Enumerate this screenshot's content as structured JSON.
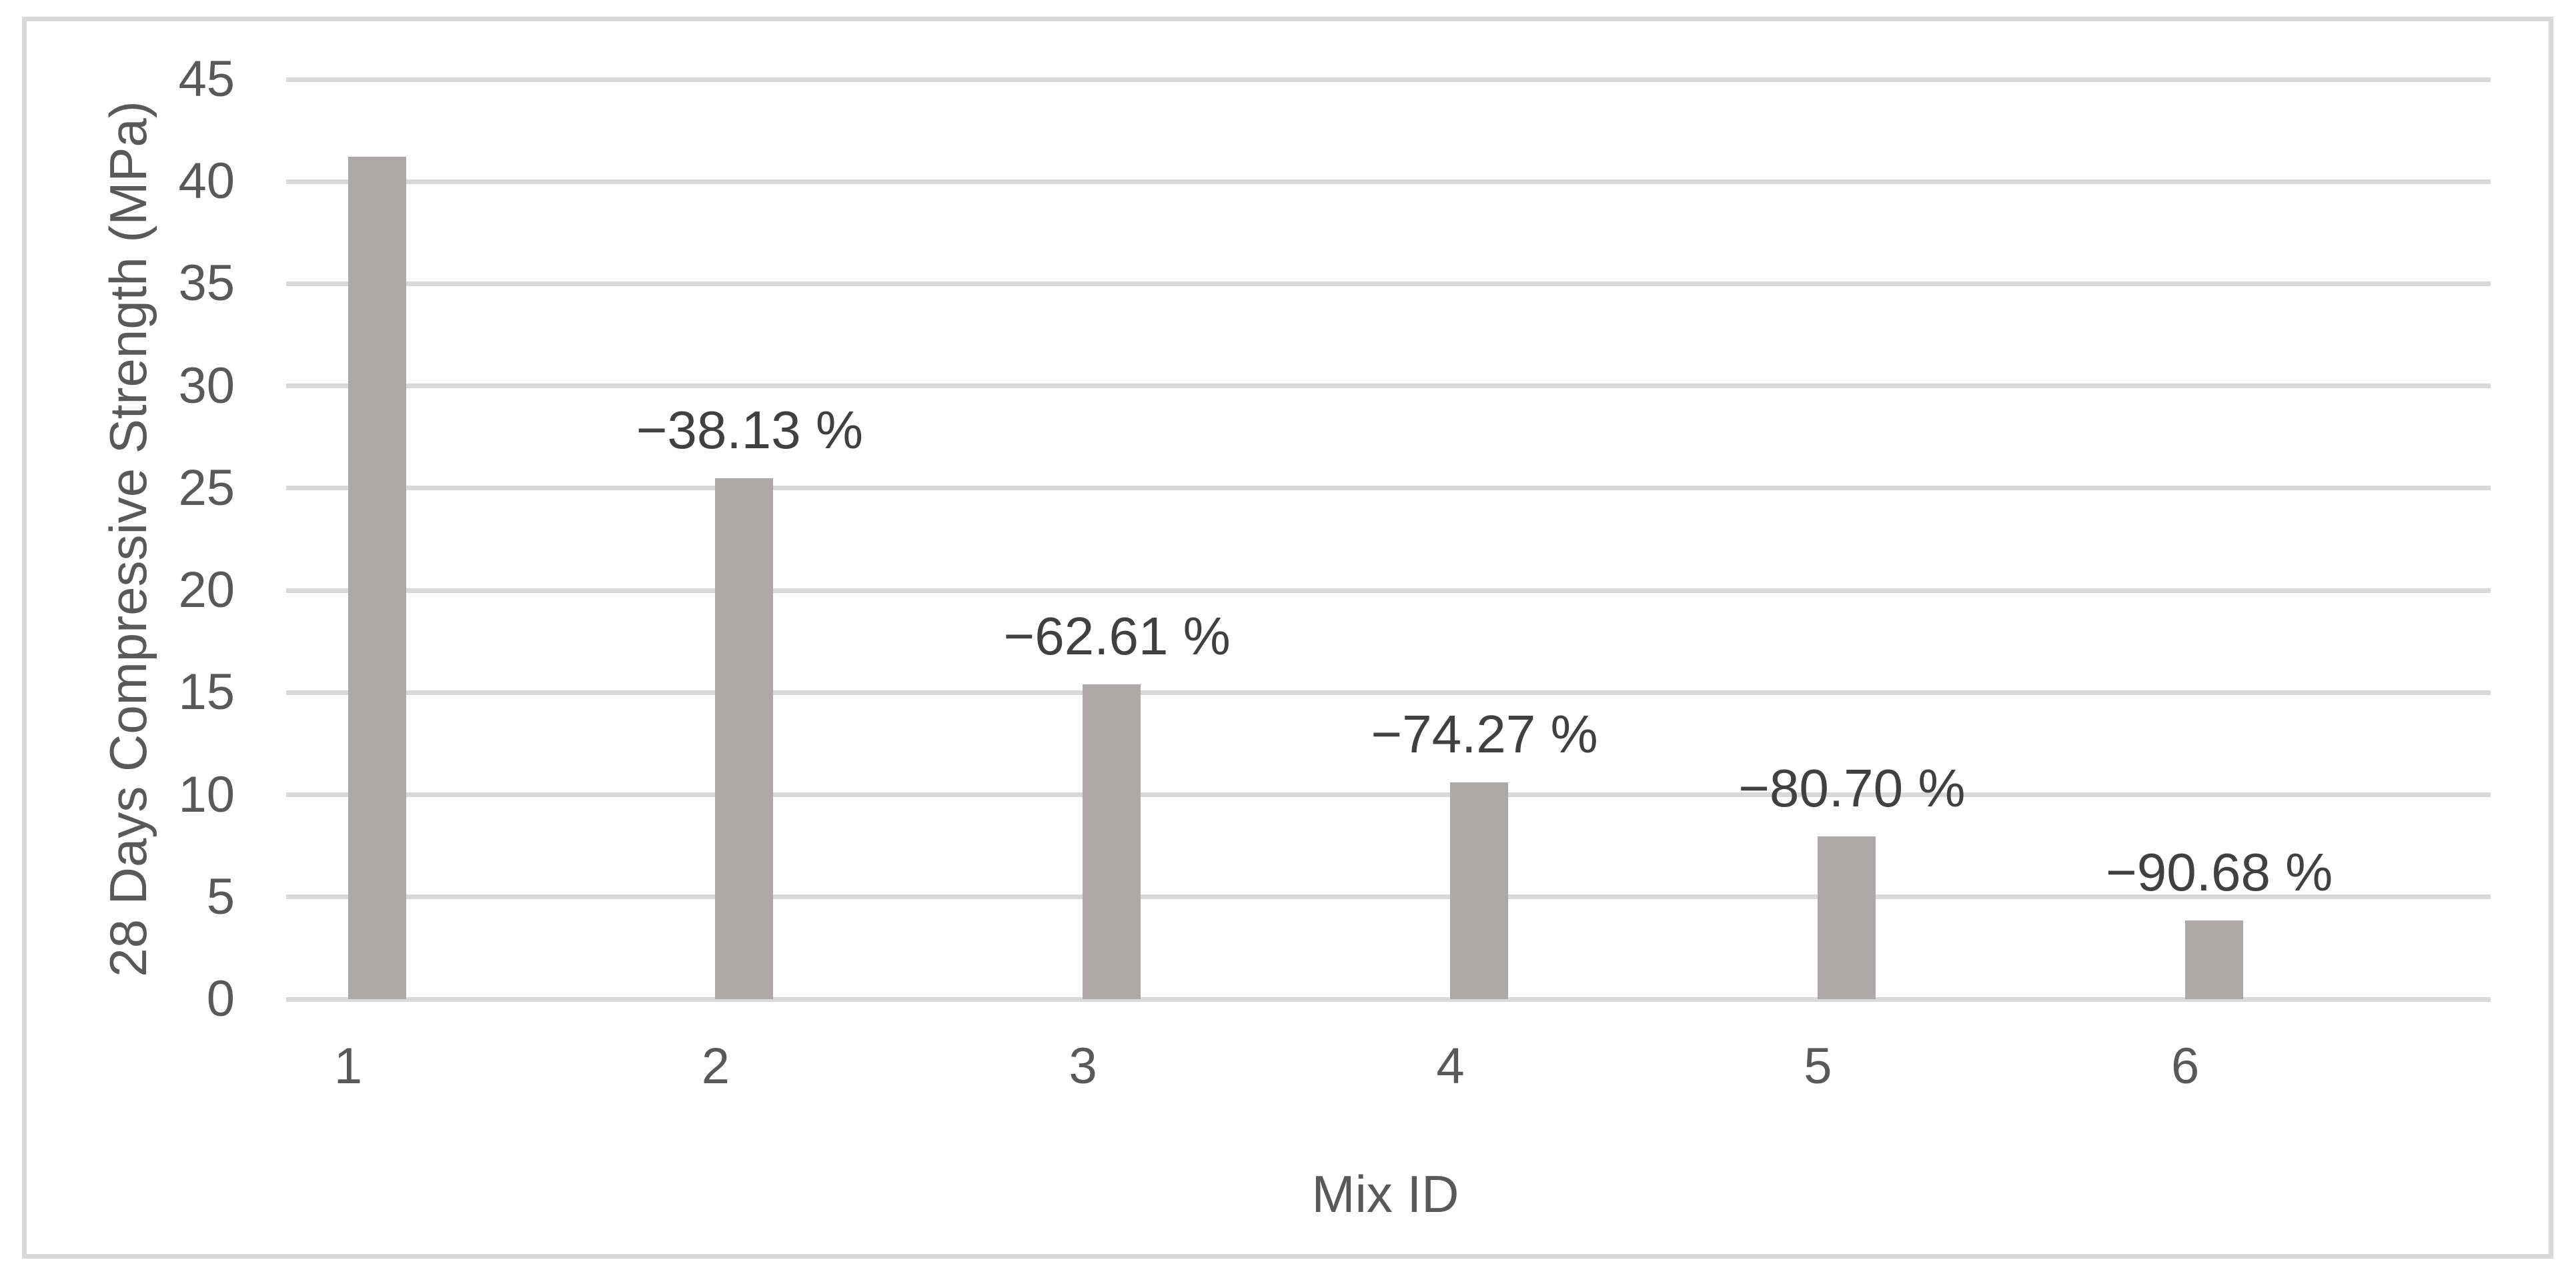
{
  "chart_data": {
    "type": "bar",
    "title": "",
    "xlabel": "Mix ID",
    "ylabel": "28 Days Compressive Strength (MPa)",
    "categories": [
      "1",
      "2",
      "3",
      "4",
      "5",
      "6"
    ],
    "values": [
      41.2,
      25.49,
      15.41,
      10.6,
      7.95,
      3.84
    ],
    "bar_labels": [
      "",
      "−38.13 %",
      "−62.61 %",
      "−74.27 %",
      "−80.70 %",
      "−90.68 %"
    ],
    "ylim": [
      0,
      45
    ],
    "yticks": [
      0,
      5,
      10,
      15,
      20,
      25,
      30,
      35,
      40,
      45
    ],
    "grid": "horizontal",
    "legend": "none",
    "bar_color": "#ADA9A8",
    "gridline_color": "#D9D9D9",
    "frame_border_color": "#D9D9D9",
    "tick_label_color": "#595959",
    "data_label_color": "#404040"
  }
}
